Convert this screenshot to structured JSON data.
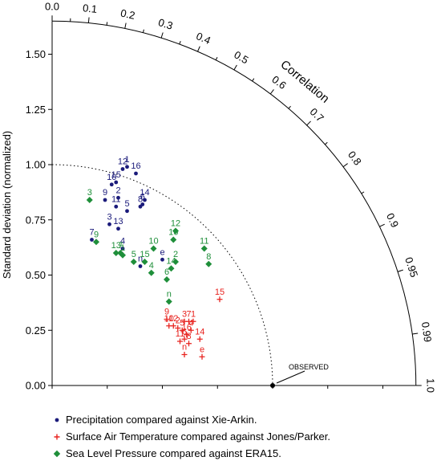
{
  "chart_data": {
    "type": "scatter",
    "subtype": "taylor-diagram",
    "xlabel": "",
    "ylabel": "Standard deviation (normalized)",
    "arc_label": "Correlation",
    "sd_range": [
      0,
      1.65
    ],
    "sd_ticks": [
      "0.00",
      "0.25",
      "0.50",
      "0.75",
      "1.00",
      "1.25",
      "1.50"
    ],
    "correlation_ticks": [
      "0.0",
      "0.1",
      "0.2",
      "0.3",
      "0.4",
      "0.5",
      "0.6",
      "0.7",
      "0.8",
      "0.9",
      "0.95",
      "0.99",
      "1.0"
    ],
    "reference": {
      "label": "OBSERVED",
      "sd": 1.0,
      "correlation": 1.0
    },
    "series": [
      {
        "name": "Precipitation compared against Xie-Arkin.",
        "color": "#1a1a7a",
        "marker": "dot",
        "points": [
          {
            "label": "1",
            "x": 0.34,
            "y": 0.99
          },
          {
            "label": "12",
            "x": 0.32,
            "y": 0.98
          },
          {
            "label": "16",
            "x": 0.38,
            "y": 0.96
          },
          {
            "label": "10",
            "x": 0.27,
            "y": 0.91
          },
          {
            "label": "15",
            "x": 0.29,
            "y": 0.92
          },
          {
            "label": "14",
            "x": 0.42,
            "y": 0.84
          },
          {
            "label": "6",
            "x": 0.41,
            "y": 0.82
          },
          {
            "label": "9",
            "x": 0.24,
            "y": 0.84
          },
          {
            "label": "2",
            "x": 0.3,
            "y": 0.85
          },
          {
            "label": "11",
            "x": 0.29,
            "y": 0.81
          },
          {
            "label": "5",
            "x": 0.34,
            "y": 0.79
          },
          {
            "label": "8",
            "x": 0.4,
            "y": 0.81
          },
          {
            "label": "3",
            "x": 0.26,
            "y": 0.73
          },
          {
            "label": "13",
            "x": 0.3,
            "y": 0.71
          },
          {
            "label": "7",
            "x": 0.18,
            "y": 0.66
          },
          {
            "label": "4",
            "x": 0.32,
            "y": 0.62
          },
          {
            "label": "e",
            "x": 0.5,
            "y": 0.57
          },
          {
            "label": "n",
            "x": 0.4,
            "y": 0.54
          }
        ]
      },
      {
        "name": "Surface Air Temperature compared against Jones/Parker.",
        "color": "#e8231f",
        "marker": "cross",
        "points": [
          {
            "label": "15",
            "x": 0.76,
            "y": 0.39
          },
          {
            "label": "9",
            "x": 0.52,
            "y": 0.3
          },
          {
            "label": "3",
            "x": 0.6,
            "y": 0.29
          },
          {
            "label": "7",
            "x": 0.62,
            "y": 0.29
          },
          {
            "label": "1",
            "x": 0.64,
            "y": 0.29
          },
          {
            "label": "10",
            "x": 0.53,
            "y": 0.27
          },
          {
            "label": "12",
            "x": 0.55,
            "y": 0.27
          },
          {
            "label": "2",
            "x": 0.57,
            "y": 0.26
          },
          {
            "label": "5",
            "x": 0.59,
            "y": 0.25
          },
          {
            "label": "4",
            "x": 0.63,
            "y": 0.25
          },
          {
            "label": "16",
            "x": 0.61,
            "y": 0.23
          },
          {
            "label": "6",
            "x": 0.6,
            "y": 0.21
          },
          {
            "label": "14",
            "x": 0.67,
            "y": 0.21
          },
          {
            "label": "8",
            "x": 0.62,
            "y": 0.19
          },
          {
            "label": "11",
            "x": 0.58,
            "y": 0.2
          },
          {
            "label": "n",
            "x": 0.6,
            "y": 0.14
          },
          {
            "label": "e",
            "x": 0.68,
            "y": 0.13
          }
        ]
      },
      {
        "name": "Sea Level Pressure compared against ERA15.",
        "color": "#1f8f3a",
        "marker": "diamond",
        "points": [
          {
            "label": "3",
            "x": 0.17,
            "y": 0.84
          },
          {
            "label": "12",
            "x": 0.56,
            "y": 0.7
          },
          {
            "label": "16",
            "x": 0.55,
            "y": 0.66
          },
          {
            "label": "11",
            "x": 0.69,
            "y": 0.62
          },
          {
            "label": "9",
            "x": 0.2,
            "y": 0.65
          },
          {
            "label": "10",
            "x": 0.46,
            "y": 0.62
          },
          {
            "label": "2",
            "x": 0.56,
            "y": 0.56
          },
          {
            "label": "8",
            "x": 0.71,
            "y": 0.55
          },
          {
            "label": "13",
            "x": 0.29,
            "y": 0.6
          },
          {
            "label": "7",
            "x": 0.31,
            "y": 0.6
          },
          {
            "label": "1",
            "x": 0.32,
            "y": 0.59
          },
          {
            "label": "5",
            "x": 0.37,
            "y": 0.56
          },
          {
            "label": "15",
            "x": 0.42,
            "y": 0.56
          },
          {
            "label": "14",
            "x": 0.54,
            "y": 0.53
          },
          {
            "label": "4",
            "x": 0.45,
            "y": 0.51
          },
          {
            "label": "6",
            "x": 0.52,
            "y": 0.48
          },
          {
            "label": "n",
            "x": 0.53,
            "y": 0.38
          }
        ]
      }
    ]
  }
}
